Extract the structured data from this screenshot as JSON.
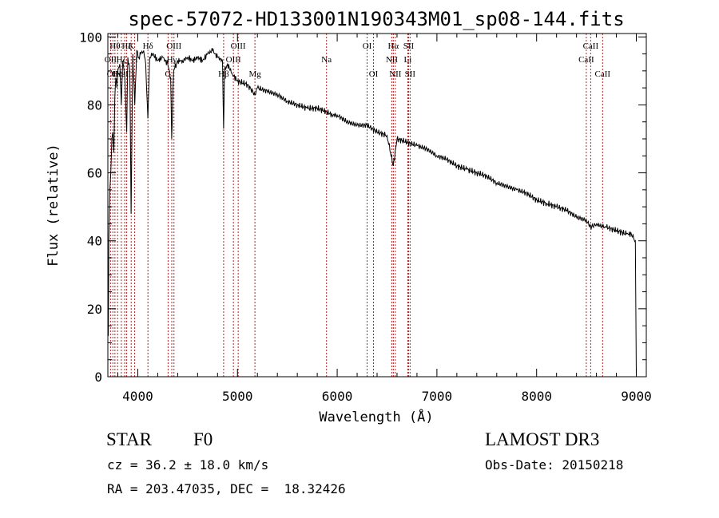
{
  "chart_data": {
    "type": "line",
    "title": "spec-57072-HD133001N190343M01_sp08-144.fits",
    "xlabel": "Wavelength (Å)",
    "ylabel": "Flux (relative)",
    "xlim": [
      3700,
      9100
    ],
    "ylim": [
      0,
      101
    ],
    "x_ticks": [
      4000,
      5000,
      6000,
      7000,
      8000,
      9000
    ],
    "y_ticks": [
      0,
      20,
      40,
      60,
      80,
      100
    ],
    "series": [
      {
        "name": "flux",
        "x": [
          3700,
          3705,
          3710,
          3720,
          3730,
          3740,
          3750,
          3760,
          3770,
          3780,
          3790,
          3800,
          3820,
          3835,
          3850,
          3870,
          3889,
          3900,
          3920,
          3933,
          3950,
          3970,
          3990,
          4010,
          4030,
          4060,
          4080,
          4101,
          4120,
          4150,
          4200,
          4250,
          4300,
          4330,
          4340,
          4360,
          4400,
          4450,
          4500,
          4550,
          4600,
          4650,
          4700,
          4750,
          4800,
          4850,
          4861,
          4870,
          4900,
          4950,
          5000,
          5100,
          5175,
          5200,
          5300,
          5400,
          5500,
          5600,
          5700,
          5800,
          5890,
          5950,
          6000,
          6100,
          6200,
          6300,
          6400,
          6500,
          6563,
          6600,
          6700,
          6800,
          6900,
          7000,
          7100,
          7200,
          7300,
          7400,
          7500,
          7600,
          7700,
          7800,
          7900,
          8000,
          8100,
          8200,
          8300,
          8400,
          8500,
          8542,
          8600,
          8662,
          8700,
          8800,
          8900,
          8950,
          8990,
          9000
        ],
        "y": [
          28,
          12,
          40,
          55,
          60,
          70,
          72,
          66,
          82,
          88,
          85,
          90,
          92,
          80,
          93,
          88,
          72,
          94,
          90,
          48,
          95,
          80,
          96,
          94,
          95,
          96,
          92,
          76,
          94,
          95,
          93,
          94,
          92,
          88,
          70,
          90,
          93,
          93,
          94,
          93,
          94,
          93,
          95,
          96,
          94,
          93,
          73,
          90,
          92,
          89,
          87,
          86,
          83,
          85,
          84,
          83,
          81,
          80,
          79,
          79,
          78,
          77,
          77,
          75,
          74,
          74,
          72,
          71,
          62,
          70,
          69,
          68,
          67,
          65,
          64,
          62,
          61,
          60,
          59,
          57,
          56,
          55,
          54,
          52,
          51,
          50,
          49,
          47,
          46,
          44,
          45,
          44,
          44,
          43,
          42,
          42,
          40,
          0
        ]
      }
    ],
    "line_markers": [
      {
        "x": 3727,
        "label": "OII",
        "row": 2
      },
      {
        "x": 3750,
        "label": "OII",
        "row": 3
      },
      {
        "x": 3771,
        "label": "Hθ",
        "row": 1
      },
      {
        "x": 3798,
        "label": "Hη",
        "row": 3
      },
      {
        "x": 3835,
        "label": "Hζ",
        "row": 2
      },
      {
        "x": 3869,
        "label": "NeIII",
        "row": 3
      },
      {
        "x": 3889,
        "label": "Hζ",
        "row": 1
      },
      {
        "x": 3934,
        "label": "K",
        "row": 1
      },
      {
        "x": 3969,
        "label": "H",
        "row": 2
      },
      {
        "x": 4102,
        "label": "Hδ",
        "row": 1
      },
      {
        "x": 4304,
        "label": "G",
        "row": 3
      },
      {
        "x": 4341,
        "label": "Hγ",
        "row": 2
      },
      {
        "x": 4363,
        "label": "OIII",
        "row": 1
      },
      {
        "x": 4861,
        "label": "Hβ",
        "row": 3
      },
      {
        "x": 4959,
        "label": "OIII",
        "row": 2
      },
      {
        "x": 5007,
        "label": "OIII",
        "row": 1
      },
      {
        "x": 5175,
        "label": "Mg",
        "row": 3
      },
      {
        "x": 5893,
        "label": "Na",
        "row": 2
      },
      {
        "x": 6300,
        "label": "OI",
        "row": 1
      },
      {
        "x": 6364,
        "label": "OI",
        "row": 3
      },
      {
        "x": 6548,
        "label": "NII",
        "row": 2
      },
      {
        "x": 6563,
        "label": "Hα",
        "row": 1
      },
      {
        "x": 6583,
        "label": "NII",
        "row": 3
      },
      {
        "x": 6708,
        "label": "Li",
        "row": 2
      },
      {
        "x": 6716,
        "label": "SII",
        "row": 1
      },
      {
        "x": 6731,
        "label": "SII",
        "row": 3
      },
      {
        "x": 8498,
        "label": "CaII",
        "row": 2
      },
      {
        "x": 8542,
        "label": "CaII",
        "row": 1
      },
      {
        "x": 8662,
        "label": "CaII",
        "row": 3
      }
    ]
  },
  "info": {
    "object_class": "STAR",
    "subclass": "F0",
    "survey": "LAMOST DR3",
    "redshift": "cz = 36.2 ± 18.0 km/s",
    "obs_date": "Obs-Date: 20150218",
    "coords": "RA = 203.47035, DEC =  18.32426"
  },
  "colors": {
    "spectrum": "#000000",
    "marker_line": "#b22222",
    "axis": "#000000"
  }
}
